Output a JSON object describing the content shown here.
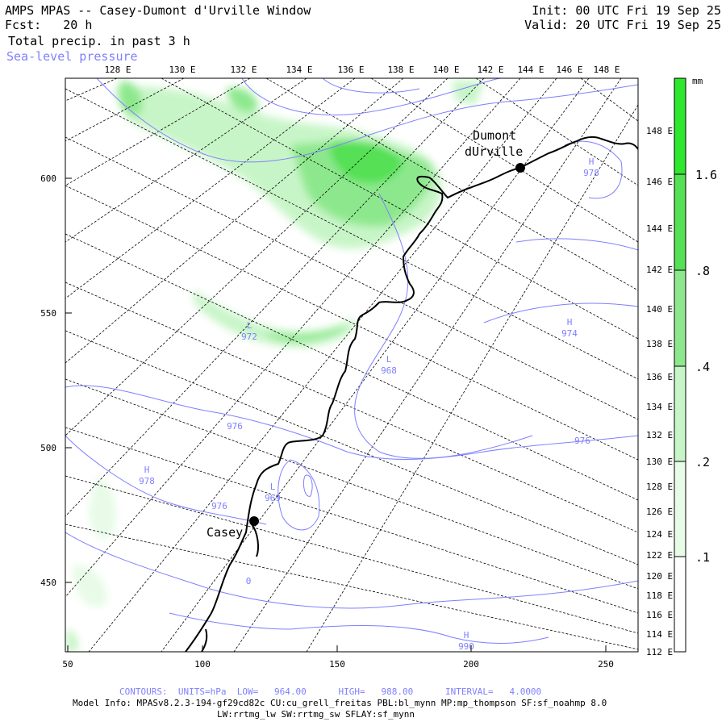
{
  "header": {
    "title": "AMPS MPAS -- Casey-Dumont d'Urville Window",
    "forecast": "Fcst:   20 h",
    "field": "Total precip. in past 3 h",
    "overlay": "Sea-level pressure",
    "init": "Init: 00 UTC Fri 19 Sep 25",
    "valid": "Valid: 20 UTC Fri 19 Sep 25"
  },
  "map": {
    "lon_labels_top": [
      "128 E",
      "130 E",
      "132 E",
      "134 E",
      "136 E",
      "138 E",
      "140 E",
      "142 E",
      "144 E",
      "146 E",
      "148 E"
    ],
    "lon_labels_right": [
      "148 E",
      "146 E",
      "144 E",
      "142 E",
      "140 E",
      "138 E",
      "136 E",
      "134 E",
      "132 E",
      "130 E",
      "128 E",
      "126 E",
      "124 E",
      "122 E",
      "120 E",
      "118 E",
      "116 E",
      "114 E",
      "112 E"
    ],
    "x_ticks": [
      "50",
      "100",
      "150",
      "200",
      "250"
    ],
    "y_ticks": [
      "600",
      "550",
      "500",
      "450"
    ],
    "stations": [
      {
        "name_line1": "Dumont",
        "name_line2": "dUrville"
      },
      {
        "name_line1": "Casey",
        "name_line2": ""
      }
    ],
    "pressure_labels": [
      {
        "type": "H",
        "value": "978"
      },
      {
        "type": "L",
        "value": "972"
      },
      {
        "type": "L",
        "value": "968"
      },
      {
        "type": "H",
        "value": "974"
      },
      {
        "type": "H",
        "value": "978"
      },
      {
        "type": "L",
        "value": "969"
      },
      {
        "type": "H",
        "value": "990"
      }
    ],
    "contour_labels": [
      "976",
      "976",
      "976",
      "0"
    ]
  },
  "colorbar": {
    "unit": "mm",
    "levels": [
      ".1",
      ".2",
      ".4",
      ".8",
      "1.6"
    ],
    "colors": [
      "#ffffff",
      "#e7fbe7",
      "#c8f5c8",
      "#8de88d",
      "#55e055",
      "#2ee82e"
    ]
  },
  "footer": {
    "contours": "CONTOURS:  UNITS=hPa  LOW=   964.00      HIGH=   988.00      INTERVAL=   4.0000",
    "model_info": "Model Info: MPASv8.2.3-194-gf29cd82c CU:cu_grell_freitas PBL:bl_mynn MP:mp_thompson SF:sf_noahmp 8.0",
    "model_info2": "LW:rrtmg_lw SW:rrtmg_sw SFLAY:sf_mynn"
  },
  "colors": {
    "contour": "#7f7fff",
    "coast": "#000000"
  }
}
